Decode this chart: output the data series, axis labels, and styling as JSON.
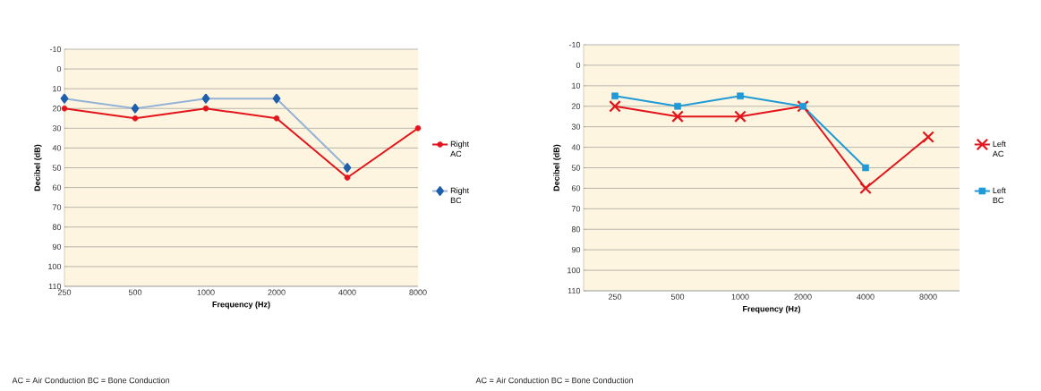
{
  "chart_data": [
    {
      "type": "line",
      "categories": [
        "250",
        "500",
        "1000",
        "2000",
        "4000",
        "8000"
      ],
      "xlabel": "Frequency (Hz)",
      "ylabel": "Decibel   (dB)",
      "ylim": [
        110,
        -10
      ],
      "yticks": [
        -10,
        0,
        10,
        20,
        30,
        40,
        50,
        60,
        70,
        80,
        90,
        100,
        110
      ],
      "grid": "y",
      "legend": "right",
      "series": [
        {
          "name": "Right AC",
          "color": "#e3141b",
          "marker": "circle",
          "values": [
            20,
            25,
            20,
            25,
            55,
            30
          ]
        },
        {
          "name": "Right BC",
          "color": "#95b3d7",
          "marker": "diamond",
          "values": [
            15,
            20,
            15,
            15,
            50,
            null
          ]
        }
      ],
      "annotations": [
        "AC = Air Conduction   BC = Bone Conduction"
      ]
    },
    {
      "type": "line",
      "categories": [
        "250",
        "500",
        "1000",
        "2000",
        "4000",
        "8000"
      ],
      "xlabel": "Frequency (Hz)",
      "ylabel": "Decibel   (dB)",
      "ylim": [
        110,
        -10
      ],
      "yticks": [
        -10,
        0,
        10,
        20,
        30,
        40,
        50,
        60,
        70,
        80,
        90,
        100,
        110
      ],
      "grid": "y",
      "legend": "right",
      "series": [
        {
          "name": "Left AC",
          "color": "#e3141b",
          "marker": "cross",
          "values": [
            20,
            25,
            25,
            20,
            60,
            35
          ]
        },
        {
          "name": "Left BC",
          "color": "#1f9ad6",
          "marker": "square",
          "values": [
            15,
            20,
            15,
            20,
            50,
            null
          ]
        }
      ],
      "annotations": [
        "AC = Air Conduction   BC = Bone Conduction"
      ]
    }
  ]
}
